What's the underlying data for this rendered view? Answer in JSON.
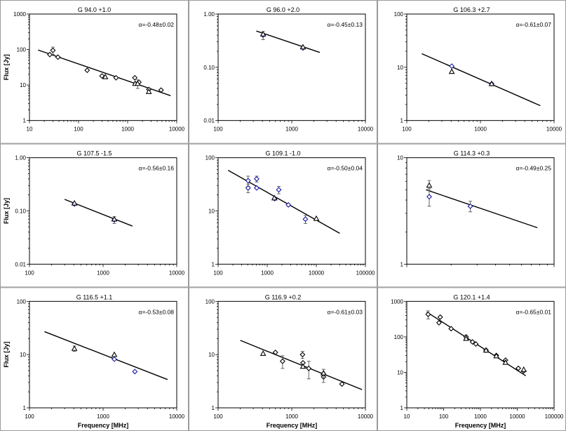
{
  "chart_data": [
    {
      "type": "scatter",
      "title": "G 94.0 +1.0",
      "annotation": "α=-0.48±0.02",
      "xlabel": "",
      "ylabel": "Flux [Jy]",
      "xscale": "log",
      "yscale": "log",
      "xlim": [
        10,
        10000
      ],
      "ylim": [
        1,
        1000
      ],
      "xticks": [
        "10",
        "100",
        "1000",
        "10000"
      ],
      "yticks": [
        "1",
        "10",
        "100",
        "1000"
      ],
      "fit": {
        "x": [
          15,
          7500
        ],
        "y": [
          97,
          5.0
        ]
      },
      "series": [
        {
          "marker": "diamond",
          "color": "#000000",
          "points": [
            {
              "x": 26,
              "y": 72
            },
            {
              "x": 30,
              "y": 95,
              "err": 22
            },
            {
              "x": 38,
              "y": 61
            },
            {
              "x": 150,
              "y": 26
            },
            {
              "x": 300,
              "y": 18
            },
            {
              "x": 580,
              "y": 16
            },
            {
              "x": 1400,
              "y": 16
            },
            {
              "x": 1700,
              "y": 12
            },
            {
              "x": 2700,
              "y": 7.5
            },
            {
              "x": 4800,
              "y": 7.2
            }
          ]
        },
        {
          "marker": "triangle",
          "color": "#000000",
          "points": [
            {
              "x": 350,
              "y": 17
            },
            {
              "x": 1420,
              "y": 11
            },
            {
              "x": 1600,
              "y": 11,
              "err": 3
            },
            {
              "x": 2700,
              "y": 6.5
            }
          ]
        }
      ]
    },
    {
      "type": "scatter",
      "title": "G 96.0 +2.0",
      "annotation": "α=-0.45±0.13",
      "xlabel": "",
      "ylabel": "",
      "xscale": "log",
      "yscale": "log",
      "xlim": [
        100,
        10000
      ],
      "ylim": [
        0.01,
        1
      ],
      "xticks": [
        "100",
        "1000",
        "10000"
      ],
      "yticks": [
        "0.01",
        "0.10",
        "1.00"
      ],
      "fit": {
        "x": [
          330,
          2400
        ],
        "y": [
          0.48,
          0.19
        ]
      },
      "series": [
        {
          "marker": "diamond",
          "color": "#1a1aa0",
          "points": [
            {
              "x": 408,
              "y": 0.4,
              "err": 0.07
            },
            {
              "x": 1420,
              "y": 0.23
            }
          ]
        },
        {
          "marker": "triangle",
          "color": "#000000",
          "points": [
            {
              "x": 408,
              "y": 0.42
            },
            {
              "x": 1420,
              "y": 0.24
            }
          ]
        }
      ]
    },
    {
      "type": "scatter",
      "title": "G 106.3 +2.7",
      "annotation": "α=-0.61±0.07",
      "xlabel": "",
      "ylabel": "",
      "xscale": "log",
      "yscale": "log",
      "xlim": [
        100,
        10000
      ],
      "ylim": [
        1,
        100
      ],
      "xticks": [
        "100",
        "1000",
        "10000"
      ],
      "yticks": [
        "1",
        "10",
        "100"
      ],
      "fit": {
        "x": [
          160,
          6500
        ],
        "y": [
          18,
          1.9
        ]
      },
      "series": [
        {
          "marker": "diamond",
          "color": "#1a1aa0",
          "points": [
            {
              "x": 408,
              "y": 10.5
            },
            {
              "x": 1420,
              "y": 4.9
            }
          ]
        },
        {
          "marker": "triangle",
          "color": "#000000",
          "points": [
            {
              "x": 408,
              "y": 8.3
            },
            {
              "x": 1420,
              "y": 4.9
            }
          ]
        }
      ]
    },
    {
      "type": "scatter",
      "title": "G 107.5 -1.5",
      "annotation": "α=-0.56±0.16",
      "xlabel": "",
      "ylabel": "Flux [Jy]",
      "xscale": "log",
      "yscale": "log",
      "xlim": [
        100,
        10000
      ],
      "ylim": [
        0.01,
        1
      ],
      "xticks": [
        "100",
        "1000",
        "10000"
      ],
      "yticks": [
        "0.01",
        "0.10",
        "1.00"
      ],
      "fit": {
        "x": [
          300,
          2500
        ],
        "y": [
          0.165,
          0.052
        ]
      },
      "series": [
        {
          "marker": "diamond",
          "color": "#1a1aa0",
          "points": [
            {
              "x": 408,
              "y": 0.135
            },
            {
              "x": 1420,
              "y": 0.068,
              "err": 0.01
            }
          ]
        },
        {
          "marker": "triangle",
          "color": "#000000",
          "points": [
            {
              "x": 408,
              "y": 0.14
            },
            {
              "x": 1420,
              "y": 0.07
            }
          ]
        }
      ]
    },
    {
      "type": "scatter",
      "title": "G 109.1 -1.0",
      "annotation": "α=-0.50±0.04",
      "xlabel": "",
      "ylabel": "",
      "xscale": "log",
      "yscale": "log",
      "xlim": [
        100,
        100000
      ],
      "ylim": [
        1,
        100
      ],
      "xticks": [
        "100",
        "1000",
        "10000",
        "100000"
      ],
      "yticks": [
        "1",
        "10",
        "100"
      ],
      "fit": {
        "x": [
          160,
          30000
        ],
        "y": [
          58,
          3.8
        ]
      },
      "series": [
        {
          "marker": "diamond",
          "color": "#1a1aa0",
          "points": [
            {
              "x": 408,
              "y": 37,
              "err": 8
            },
            {
              "x": 408,
              "y": 27,
              "err": 5
            },
            {
              "x": 610,
              "y": 40,
              "err": 5
            },
            {
              "x": 610,
              "y": 27
            },
            {
              "x": 1420,
              "y": 17
            },
            {
              "x": 1720,
              "y": 25,
              "err": 4
            },
            {
              "x": 2700,
              "y": 13
            },
            {
              "x": 6000,
              "y": 7,
              "err": 1.2
            }
          ]
        },
        {
          "marker": "triangle",
          "color": "#000000",
          "points": [
            {
              "x": 1400,
              "y": 17.5
            },
            {
              "x": 10000,
              "y": 7.2
            }
          ]
        }
      ]
    },
    {
      "type": "scatter",
      "title": "G 114.3 +0.3",
      "annotation": "α=-0.49±0.25",
      "xlabel": "",
      "ylabel": "",
      "xscale": "log",
      "yscale": "log",
      "xlim": [
        1000,
        10000
      ],
      "ylim": [
        1,
        10
      ],
      "xticks": [],
      "yticks": [
        "1",
        "10"
      ],
      "fit": {
        "x": [
          1350,
          7700
        ],
        "y": [
          5.0,
          2.2
        ]
      },
      "series": [
        {
          "marker": "diamond",
          "color": "#1a1aa0",
          "points": [
            {
              "x": 1420,
              "y": 4.3,
              "err": 0.8
            },
            {
              "x": 2700,
              "y": 3.5,
              "err": 0.4
            }
          ]
        },
        {
          "marker": "triangle",
          "color": "#000000",
          "points": [
            {
              "x": 1420,
              "y": 5.5,
              "err": 0.6
            }
          ]
        }
      ]
    },
    {
      "type": "scatter",
      "title": "G 116.5 +1.1",
      "annotation": "α=-0.53±0.08",
      "xlabel": "Frequency [MHz]",
      "ylabel": "Flux [Jy]",
      "xscale": "log",
      "yscale": "log",
      "xlim": [
        100,
        10000
      ],
      "ylim": [
        1,
        100
      ],
      "xticks": [
        "100",
        "1000",
        "10000"
      ],
      "yticks": [
        "1",
        "10",
        "100"
      ],
      "fit": {
        "x": [
          160,
          7500
        ],
        "y": [
          27,
          3.4
        ]
      },
      "series": [
        {
          "marker": "diamond",
          "color": "#1a1aa0",
          "points": [
            {
              "x": 1420,
              "y": 8.2
            },
            {
              "x": 2700,
              "y": 4.8
            }
          ]
        },
        {
          "marker": "triangle",
          "color": "#000000",
          "points": [
            {
              "x": 408,
              "y": 13,
              "err": 1.5
            },
            {
              "x": 1420,
              "y": 10
            }
          ]
        }
      ]
    },
    {
      "type": "scatter",
      "title": "G 116.9 +0.2",
      "annotation": "α=-0.61±0.03",
      "xlabel": "Frequency [MHz]",
      "ylabel": "",
      "xscale": "log",
      "yscale": "log",
      "xlim": [
        100,
        10000
      ],
      "ylim": [
        1,
        100
      ],
      "xticks": [
        "100",
        "1000",
        "10000"
      ],
      "yticks": [
        "1",
        "10",
        "100"
      ],
      "fit": {
        "x": [
          200,
          9000
        ],
        "y": [
          18.5,
          2.2
        ]
      },
      "series": [
        {
          "marker": "diamond",
          "color": "#000000",
          "points": [
            {
              "x": 600,
              "y": 11
            },
            {
              "x": 750,
              "y": 7.5,
              "err": 2
            },
            {
              "x": 1400,
              "y": 10,
              "err": 1.5
            },
            {
              "x": 1420,
              "y": 7
            },
            {
              "x": 1700,
              "y": 5.5,
              "err": 2
            },
            {
              "x": 2700,
              "y": 4.3
            },
            {
              "x": 2700,
              "y": 3.8,
              "err": 0.8
            },
            {
              "x": 4800,
              "y": 2.8
            }
          ]
        },
        {
          "marker": "triangle",
          "color": "#000000",
          "points": [
            {
              "x": 408,
              "y": 10.5
            },
            {
              "x": 1420,
              "y": 6
            },
            {
              "x": 2700,
              "y": 4.5,
              "err": 0.8
            }
          ]
        }
      ]
    },
    {
      "type": "scatter",
      "title": "G 120.1 +1.4",
      "annotation": "α=-0.65±0.01",
      "xlabel": "Frequency [MHz]",
      "ylabel": "",
      "xscale": "log",
      "yscale": "log",
      "xlim": [
        10,
        100000
      ],
      "ylim": [
        1,
        1000
      ],
      "xticks": [
        "10",
        "100",
        "1000",
        "10000",
        "100000"
      ],
      "yticks": [
        "1",
        "10",
        "100",
        "1000"
      ],
      "fit": {
        "x": [
          35,
          17000
        ],
        "y": [
          500,
          8
        ]
      },
      "series": [
        {
          "marker": "diamond",
          "color": "#000000",
          "points": [
            {
              "x": 38,
              "y": 430,
              "err": 110
            },
            {
              "x": 75,
              "y": 250
            },
            {
              "x": 81,
              "y": 360
            },
            {
              "x": 160,
              "y": 170
            },
            {
              "x": 408,
              "y": 100
            },
            {
              "x": 610,
              "y": 72
            },
            {
              "x": 750,
              "y": 63
            },
            {
              "x": 1420,
              "y": 42
            },
            {
              "x": 2700,
              "y": 30
            },
            {
              "x": 4800,
              "y": 22
            },
            {
              "x": 10700,
              "y": 13
            },
            {
              "x": 15000,
              "y": 11
            }
          ]
        },
        {
          "marker": "triangle",
          "color": "#000000",
          "points": [
            {
              "x": 408,
              "y": 90
            },
            {
              "x": 1420,
              "y": 42
            },
            {
              "x": 2700,
              "y": 29
            },
            {
              "x": 4800,
              "y": 19
            },
            {
              "x": 15000,
              "y": 12
            }
          ]
        }
      ]
    }
  ]
}
